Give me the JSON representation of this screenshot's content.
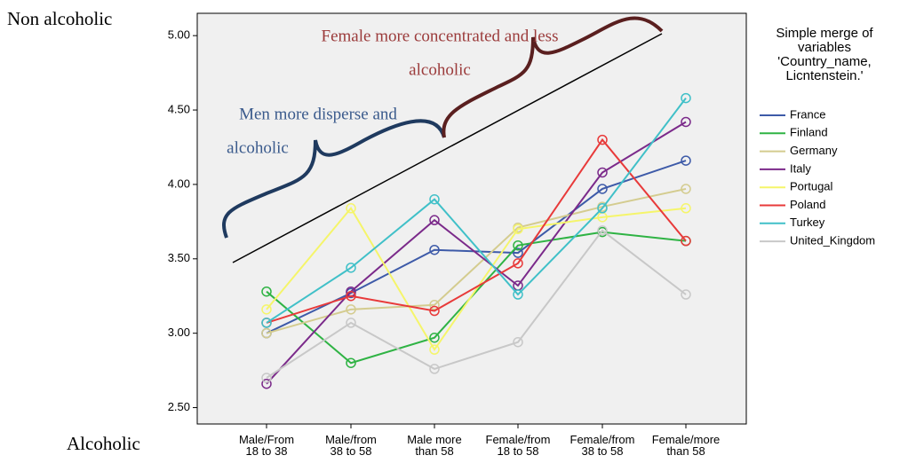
{
  "chart_data": {
    "type": "line",
    "categories": [
      "Male/From\n18 to 38",
      "Male/from\n38 to 58",
      "Male more\nthan 58",
      "Female/from\n18 to 58",
      "Female/from\n38 to 58",
      "Female/more\nthan 58"
    ],
    "ylim": [
      2.39,
      5.15
    ],
    "yticks": [
      {
        "value": 2.5,
        "label": "2.50"
      },
      {
        "value": 3,
        "label": "3.00"
      },
      {
        "value": 3.5,
        "label": "3.50"
      },
      {
        "value": 4,
        "label": "4.00"
      },
      {
        "value": 4.5,
        "label": "4.50"
      },
      {
        "value": 5,
        "label": "5.00"
      }
    ],
    "top_label": "Non alcoholic",
    "bottom_label": "Alcoholic",
    "annotations": [
      {
        "lines": [
          "Female more concentrated and less",
          "alcoholic"
        ],
        "color": "#9b3b3b"
      },
      {
        "lines": [
          "Men more disperse and",
          "alcoholic"
        ],
        "color": "#3a5a8c"
      }
    ],
    "legend_title": [
      "Simple merge of",
      "variables",
      "'Country_name,",
      "Licntenstein.'"
    ],
    "series": [
      {
        "name": "France",
        "color": "#3d5aa8",
        "values": [
          3.0,
          3.27,
          3.56,
          3.54,
          3.97,
          4.16
        ]
      },
      {
        "name": "Finland",
        "color": "#2fb344",
        "values": [
          3.28,
          2.8,
          2.97,
          3.59,
          3.68,
          3.62
        ]
      },
      {
        "name": "Germany",
        "color": "#d4cc8f",
        "values": [
          3.0,
          3.16,
          3.19,
          3.71,
          3.85,
          3.97
        ]
      },
      {
        "name": "Italy",
        "color": "#7b2a8a",
        "values": [
          2.66,
          3.28,
          3.76,
          3.32,
          4.08,
          4.42
        ]
      },
      {
        "name": "Portugal",
        "color": "#f5f56a",
        "values": [
          3.16,
          3.84,
          2.89,
          3.7,
          3.78,
          3.84
        ]
      },
      {
        "name": "Poland",
        "color": "#e83a3a",
        "values": [
          3.07,
          3.25,
          3.15,
          3.47,
          4.3,
          3.62
        ]
      },
      {
        "name": "Turkey",
        "color": "#40c0c8",
        "values": [
          3.07,
          3.44,
          3.9,
          3.26,
          3.84,
          4.58
        ]
      },
      {
        "name": "United_Kingdom",
        "color": "#c8c8c8",
        "values": [
          2.7,
          3.07,
          2.76,
          2.94,
          3.69,
          3.26
        ]
      }
    ]
  }
}
